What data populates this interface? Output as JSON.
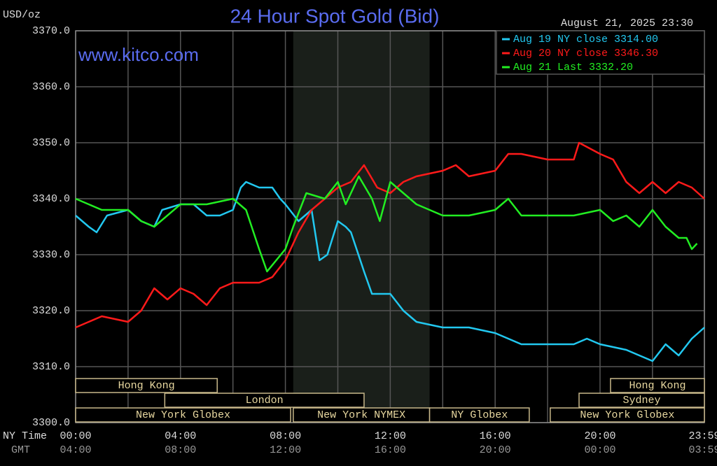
{
  "chart_data": {
    "type": "line",
    "title": "24 Hour Spot Gold (Bid)",
    "date_label": "August 21, 2025 23:30",
    "watermark": "www.kitco.com",
    "y_unit": "USD/oz",
    "x_row_label": "NY Time",
    "x2_row_label": "GMT",
    "ylim": [
      3300,
      3370
    ],
    "yticks": [
      {
        "value": 3300,
        "label": "3300.0"
      },
      {
        "value": 3310,
        "label": "3310.0"
      },
      {
        "value": 3320,
        "label": "3320.0"
      },
      {
        "value": 3330,
        "label": "3330.0"
      },
      {
        "value": 3340,
        "label": "3340.0"
      },
      {
        "value": 3350,
        "label": "3350.0"
      },
      {
        "value": 3360,
        "label": "3360.0"
      },
      {
        "value": 3370,
        "label": "3370.0"
      }
    ],
    "xlim": [
      0,
      23.98
    ],
    "xticks": [
      {
        "value": 0,
        "label": "00:00"
      },
      {
        "value": 4,
        "label": "04:00"
      },
      {
        "value": 8,
        "label": "08:00"
      },
      {
        "value": 12,
        "label": "12:00"
      },
      {
        "value": 16,
        "label": "16:00"
      },
      {
        "value": 20,
        "label": "20:00"
      },
      {
        "value": 23.98,
        "label": "23:59"
      }
    ],
    "x2tick_labels": [
      "04:00",
      "08:00",
      "12:00",
      "16:00",
      "20:00",
      "00:00",
      "03:59"
    ],
    "minor_xticks": [
      2,
      6,
      10,
      14,
      18,
      22
    ],
    "grid": true,
    "highlight_range": [
      8.3,
      13.5
    ],
    "session_rows": [
      [
        {
          "name": "Hong Kong",
          "start": 0,
          "end": 5.4
        },
        {
          "name": "Hong Kong",
          "start": 20.4,
          "end": 23.98
        }
      ],
      [
        {
          "name": "London",
          "start": 3.4,
          "end": 11
        },
        {
          "name": "Sydney",
          "start": 19.2,
          "end": 23.98
        }
      ],
      [
        {
          "name": "New York Globex",
          "start": 0,
          "end": 8.2
        },
        {
          "name": "New York NYMEX",
          "start": 8.3,
          "end": 13.5
        },
        {
          "name": "NY Globex",
          "start": 13.5,
          "end": 17.3
        },
        {
          "name": "New York Globex",
          "start": 18.1,
          "end": 23.98
        }
      ]
    ],
    "series": [
      {
        "name": "Aug 19 NY close 3314.00",
        "color": "#22c8f0",
        "x": [
          0,
          0.5,
          0.8,
          1.2,
          2,
          2.5,
          3,
          3.3,
          4,
          4.5,
          5,
          5.5,
          6,
          6.3,
          6.5,
          7,
          7.5,
          7.8,
          8,
          8.5,
          9,
          9.3,
          9.6,
          10,
          10.3,
          10.5,
          11,
          11.3,
          11.6,
          12,
          12.5,
          13,
          14,
          15,
          16,
          17,
          18,
          19,
          19.5,
          20,
          21,
          21.5,
          22,
          22.5,
          23,
          23.5,
          23.98
        ],
        "values": [
          3337,
          3335,
          3334,
          3337,
          3338,
          3336,
          3335,
          3338,
          3339,
          3339,
          3337,
          3337,
          3338,
          3342,
          3343,
          3342,
          3342,
          3340,
          3339,
          3336,
          3338,
          3329,
          3330,
          3336,
          3335,
          3334,
          3327,
          3323,
          3323,
          3323,
          3320,
          3318,
          3317,
          3317,
          3316,
          3314,
          3314,
          3314,
          3315,
          3314,
          3313,
          3312,
          3311,
          3314,
          3312,
          3315,
          3317
        ]
      },
      {
        "name": "Aug 20 NY close 3346.30",
        "color": "#ff1a1a",
        "x": [
          0,
          1,
          2,
          2.5,
          3,
          3.5,
          4,
          4.5,
          5,
          5.5,
          6,
          7,
          7.5,
          8,
          8.5,
          9,
          9.5,
          10,
          10.5,
          11,
          11.5,
          12,
          12.5,
          13,
          14,
          14.5,
          15,
          16,
          16.5,
          17,
          18,
          19,
          19.2,
          20,
          20.5,
          21,
          21.5,
          22,
          22.5,
          23,
          23.5,
          23.98
        ],
        "values": [
          3317,
          3319,
          3318,
          3320,
          3324,
          3322,
          3324,
          3323,
          3321,
          3324,
          3325,
          3325,
          3326,
          3329,
          3334,
          3338,
          3340,
          3342,
          3343,
          3346,
          3342,
          3341,
          3343,
          3344,
          3345,
          3346,
          3344,
          3345,
          3348,
          3348,
          3347,
          3347,
          3350,
          3348,
          3347,
          3343,
          3341,
          3343,
          3341,
          3343,
          3342,
          3340
        ]
      },
      {
        "name": "Aug 21 Last 3332.20",
        "color": "#22ee22",
        "x": [
          0,
          1,
          2,
          2.5,
          3,
          4,
          5,
          6,
          6.5,
          7,
          7.3,
          8,
          8.3,
          8.8,
          9.5,
          10,
          10.3,
          10.8,
          11.3,
          11.6,
          12,
          12.5,
          13,
          14,
          15,
          16,
          16.5,
          17,
          18,
          19,
          20,
          20.5,
          21,
          21.5,
          22,
          22.5,
          23,
          23.3,
          23.5,
          23.7
        ],
        "values": [
          3340,
          3338,
          3338,
          3336,
          3335,
          3339,
          3339,
          3340,
          3338,
          3331,
          3327,
          3331,
          3335,
          3341,
          3340,
          3343,
          3339,
          3344,
          3340,
          3336,
          3343,
          3341,
          3339,
          3337,
          3337,
          3338,
          3340,
          3337,
          3337,
          3337,
          3338,
          3336,
          3337,
          3335,
          3338,
          3335,
          3333,
          3333,
          3331,
          3332
        ]
      }
    ]
  }
}
